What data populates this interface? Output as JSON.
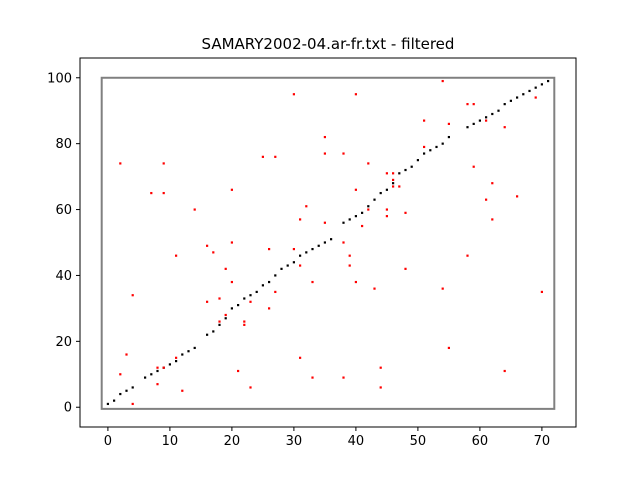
{
  "chart_data": {
    "type": "scatter",
    "title": "SAMARY2002-04.ar-fr.txt - filtered",
    "xlabel": "",
    "ylabel": "",
    "xlim": [
      -4.5,
      75.5
    ],
    "ylim": [
      -6,
      106
    ],
    "x_ticks": [
      0,
      10,
      20,
      30,
      40,
      50,
      60,
      70
    ],
    "y_ticks": [
      0,
      20,
      40,
      60,
      80,
      100
    ],
    "grid": false,
    "frame_rectangle": {
      "x": [
        -1,
        72
      ],
      "y": [
        -0.5,
        100
      ],
      "color": "#808080"
    },
    "series": [
      {
        "color": "#000000",
        "points": [
          [
            0,
            1
          ],
          [
            1,
            2
          ],
          [
            2,
            4
          ],
          [
            3,
            5
          ],
          [
            4,
            6
          ],
          [
            6,
            9
          ],
          [
            7,
            10
          ],
          [
            8,
            11
          ],
          [
            9,
            12
          ],
          [
            10,
            13
          ],
          [
            11,
            14
          ],
          [
            12,
            16
          ],
          [
            13,
            17
          ],
          [
            14,
            18
          ],
          [
            16,
            22
          ],
          [
            17,
            23
          ],
          [
            18,
            25
          ],
          [
            19,
            27
          ],
          [
            20,
            30
          ],
          [
            21,
            31
          ],
          [
            22,
            33
          ],
          [
            23,
            34
          ],
          [
            24,
            35
          ],
          [
            25,
            37
          ],
          [
            26,
            38
          ],
          [
            27,
            40
          ],
          [
            28,
            42
          ],
          [
            29,
            43
          ],
          [
            30,
            44
          ],
          [
            31,
            46
          ],
          [
            32,
            47
          ],
          [
            33,
            48
          ],
          [
            34,
            49
          ],
          [
            35,
            50
          ],
          [
            36,
            51
          ],
          [
            38,
            56
          ],
          [
            39,
            57
          ],
          [
            40,
            58
          ],
          [
            41,
            59
          ],
          [
            42,
            61
          ],
          [
            43,
            63
          ],
          [
            44,
            65
          ],
          [
            45,
            66
          ],
          [
            46,
            68
          ],
          [
            47,
            71
          ],
          [
            48,
            72
          ],
          [
            49,
            73
          ],
          [
            50,
            75
          ],
          [
            51,
            77
          ],
          [
            52,
            78
          ],
          [
            53,
            79
          ],
          [
            54,
            80
          ],
          [
            55,
            82
          ],
          [
            58,
            85
          ],
          [
            59,
            86
          ],
          [
            60,
            87
          ],
          [
            61,
            88
          ],
          [
            62,
            89
          ],
          [
            63,
            90
          ],
          [
            64,
            92
          ],
          [
            65,
            93
          ],
          [
            66,
            94
          ],
          [
            67,
            95
          ],
          [
            68,
            96
          ],
          [
            69,
            97
          ],
          [
            70,
            98
          ],
          [
            71,
            99
          ]
        ]
      },
      {
        "color": "#ff0000",
        "points": [
          [
            2,
            74
          ],
          [
            2,
            10
          ],
          [
            3,
            16
          ],
          [
            4,
            1
          ],
          [
            4,
            34
          ],
          [
            7,
            65
          ],
          [
            8,
            7
          ],
          [
            8,
            12
          ],
          [
            9,
            74
          ],
          [
            9,
            65
          ],
          [
            9,
            12
          ],
          [
            11,
            46
          ],
          [
            11,
            15
          ],
          [
            12,
            5
          ],
          [
            14,
            60
          ],
          [
            16,
            49
          ],
          [
            16,
            32
          ],
          [
            17,
            47
          ],
          [
            18,
            33
          ],
          [
            18,
            26
          ],
          [
            19,
            42
          ],
          [
            19,
            28
          ],
          [
            20,
            66
          ],
          [
            20,
            50
          ],
          [
            20,
            38
          ],
          [
            21,
            11
          ],
          [
            22,
            26
          ],
          [
            22,
            25
          ],
          [
            23,
            6
          ],
          [
            23,
            32
          ],
          [
            25,
            76
          ],
          [
            26,
            48
          ],
          [
            26,
            30
          ],
          [
            27,
            76
          ],
          [
            27,
            35
          ],
          [
            30,
            95
          ],
          [
            30,
            48
          ],
          [
            31,
            57
          ],
          [
            31,
            43
          ],
          [
            31,
            15
          ],
          [
            32,
            61
          ],
          [
            33,
            38
          ],
          [
            33,
            9
          ],
          [
            35,
            82
          ],
          [
            35,
            77
          ],
          [
            35,
            56
          ],
          [
            38,
            77
          ],
          [
            38,
            50
          ],
          [
            38,
            9
          ],
          [
            39,
            46
          ],
          [
            39,
            43
          ],
          [
            40,
            95
          ],
          [
            40,
            66
          ],
          [
            40,
            38
          ],
          [
            41,
            55
          ],
          [
            42,
            74
          ],
          [
            42,
            60
          ],
          [
            43,
            36
          ],
          [
            44,
            12
          ],
          [
            44,
            6
          ],
          [
            45,
            71
          ],
          [
            45,
            60
          ],
          [
            45,
            58
          ],
          [
            46,
            71
          ],
          [
            46,
            69
          ],
          [
            46,
            67
          ],
          [
            47,
            67
          ],
          [
            48,
            59
          ],
          [
            48,
            42
          ],
          [
            51,
            87
          ],
          [
            51,
            79
          ],
          [
            54,
            99
          ],
          [
            54,
            36
          ],
          [
            55,
            86
          ],
          [
            55,
            18
          ],
          [
            58,
            92
          ],
          [
            58,
            46
          ],
          [
            59,
            92
          ],
          [
            59,
            73
          ],
          [
            61,
            87
          ],
          [
            61,
            63
          ],
          [
            62,
            68
          ],
          [
            62,
            57
          ],
          [
            64,
            85
          ],
          [
            64,
            11
          ],
          [
            66,
            64
          ],
          [
            69,
            94
          ],
          [
            70,
            35
          ]
        ]
      }
    ]
  }
}
